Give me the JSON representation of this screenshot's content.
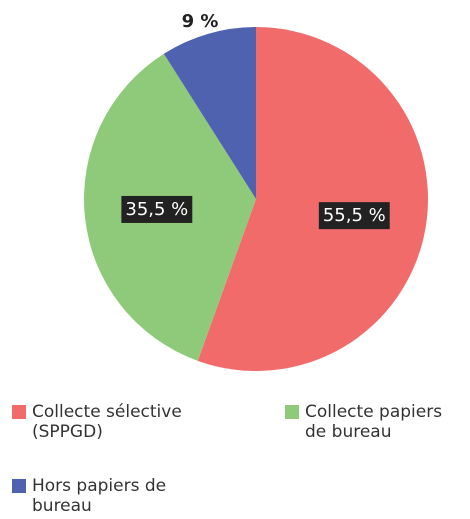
{
  "chart_data": {
    "type": "pie",
    "categories": [
      "Collecte sélective (SPPGD)",
      "Collecte papiers de bureau",
      "Hors papiers de bureau"
    ],
    "values": [
      55.5,
      35.5,
      9
    ],
    "value_labels": [
      "55,5 %",
      "35,5 %",
      "9 %"
    ],
    "colors": [
      "#f26b6b",
      "#8fca7b",
      "#4f62b0"
    ]
  }
}
